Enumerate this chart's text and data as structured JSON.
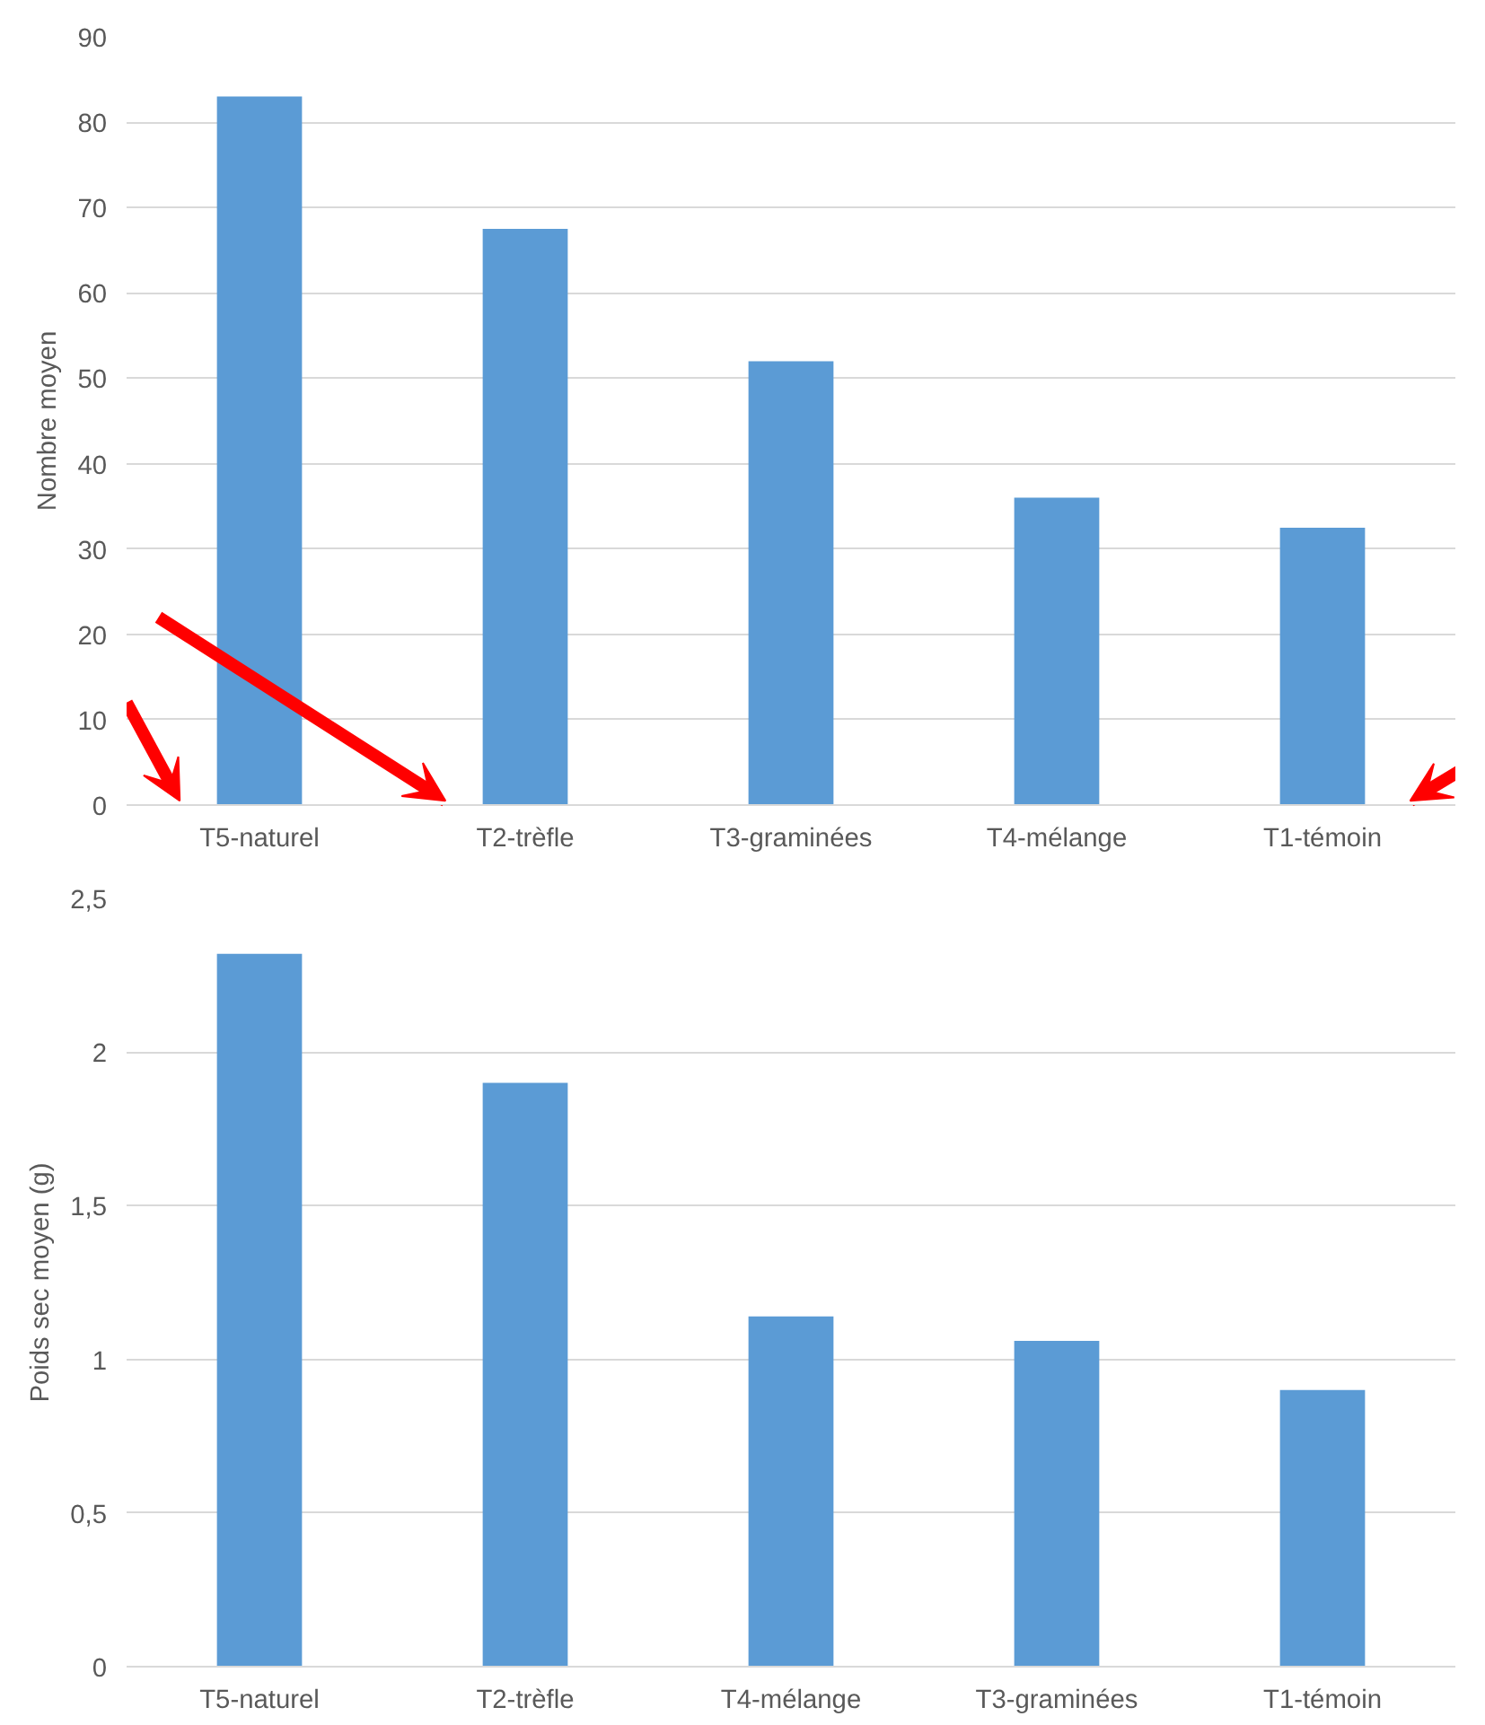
{
  "chart_data": [
    {
      "type": "bar",
      "ylabel": "Nombre moyen",
      "categories": [
        "T5-naturel",
        "T2-trèfle",
        "T3-graminées",
        "T4-mélange",
        "T1-témoin"
      ],
      "series": [
        {
          "color": "#5b9bd5",
          "values": [
            83,
            67.5,
            52,
            36,
            32.5
          ]
        }
      ],
      "ylim": [
        0,
        90
      ],
      "yticks": [
        0,
        10,
        20,
        30,
        40,
        50,
        60,
        70,
        80,
        90
      ],
      "grid": "y"
    },
    {
      "type": "bar",
      "ylabel": "Poids sec moyen (g)",
      "categories": [
        "T5-naturel",
        "T2-trèfle",
        "T4-mélange",
        "T3-graminées",
        "T1-témoin"
      ],
      "series": [
        {
          "color": "#5b9bd5",
          "values": [
            2.32,
            1.9,
            1.14,
            1.06,
            0.9
          ]
        }
      ],
      "ylim": [
        0,
        2.5
      ],
      "yticks": [
        0,
        {
          "value": 0.5,
          "label": "0,5"
        },
        1,
        {
          "value": 1.5,
          "label": "1,5"
        },
        2,
        {
          "value": 2.5,
          "label": "2,5"
        }
      ],
      "grid": "y"
    }
  ]
}
